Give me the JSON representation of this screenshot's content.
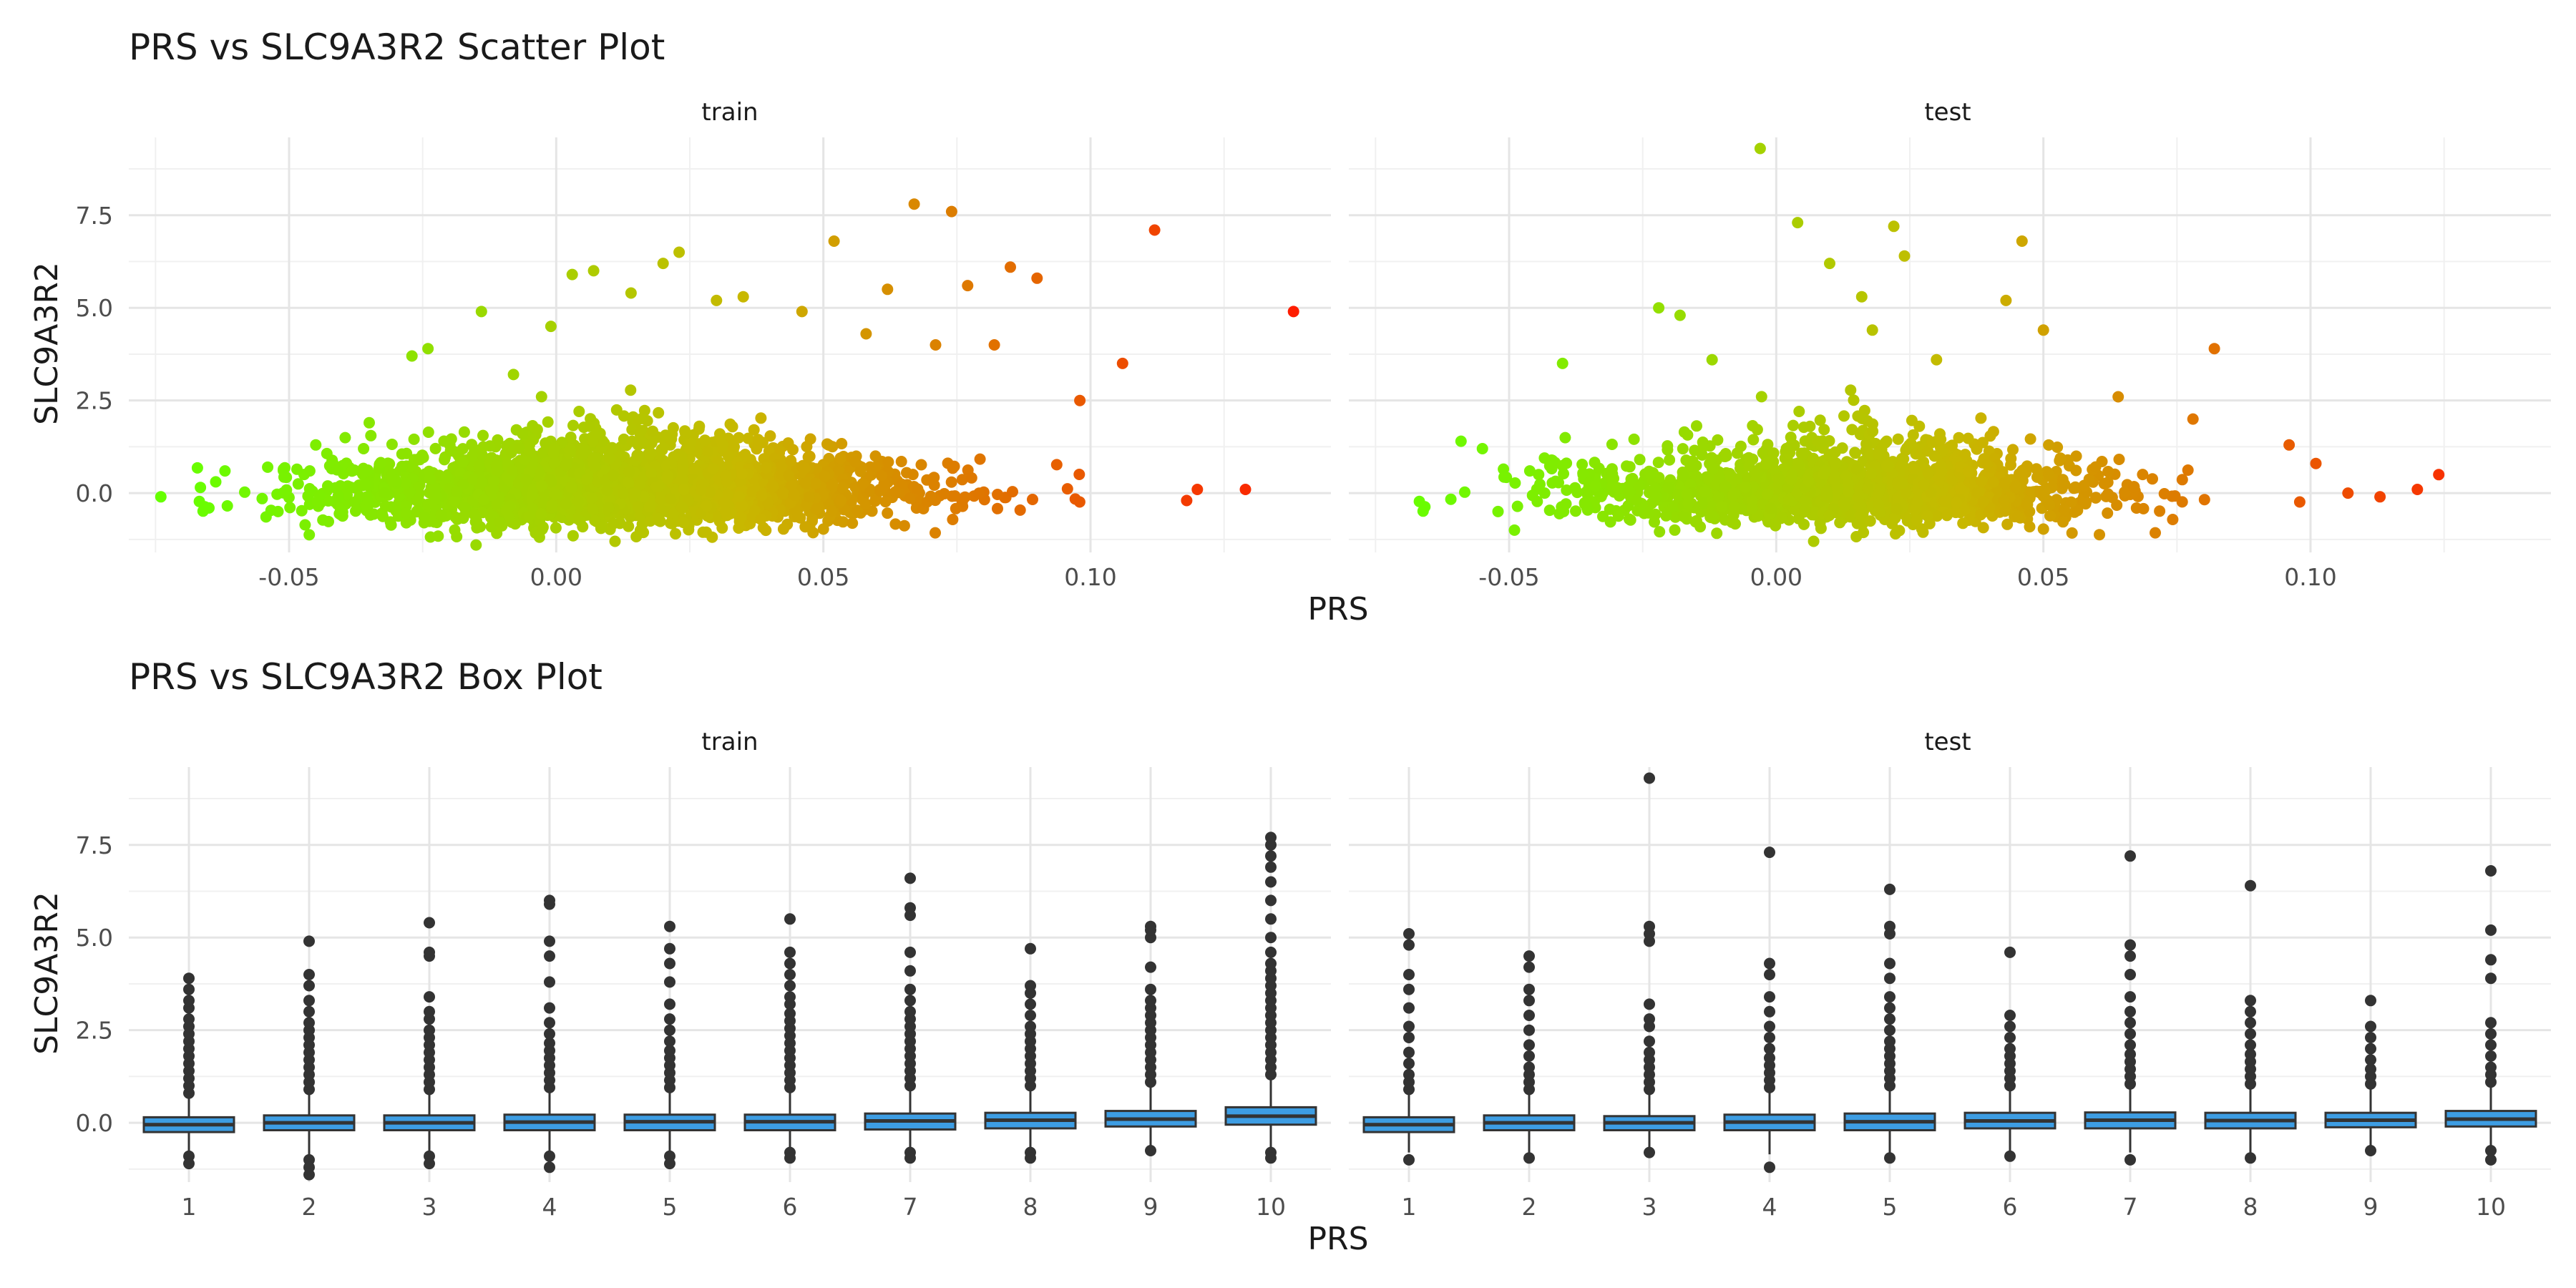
{
  "chart_data": [
    {
      "type": "scatter",
      "title": "PRS vs SLC9A3R2 Scatter Plot",
      "xlabel": "PRS",
      "ylabel": "SLC9A3R2",
      "facets": [
        "train",
        "test"
      ],
      "x_ticks": [
        "-0.05",
        "0.00",
        "0.05",
        "0.10"
      ],
      "x_tick_values": [
        -0.05,
        0.0,
        0.05,
        0.1
      ],
      "y_ticks": [
        "0.0",
        "2.5",
        "5.0",
        "7.5"
      ],
      "y_tick_values": [
        0.0,
        2.5,
        5.0,
        7.5
      ],
      "xlim": [
        -0.08,
        0.145
      ],
      "ylim": [
        -1.6,
        9.6
      ],
      "color_gradient": {
        "low": "#66ff00",
        "mid": "#c8b800",
        "high": "#ff1a00",
        "low_value": -0.07,
        "high_value": 0.14
      },
      "grid": true,
      "note": "Dense point cloud centred near SLC9A3R2 = 0 with points spreading upward; outlier points listed below.",
      "series": [
        {
          "name": "train",
          "points": [
            {
              "x": -0.074,
              "y": -0.1
            },
            {
              "x": -0.065,
              "y": -0.4
            },
            {
              "x": -0.062,
              "y": 0.6
            },
            {
              "x": -0.054,
              "y": 0.7
            },
            {
              "x": -0.045,
              "y": 1.3
            },
            {
              "x": -0.035,
              "y": 1.9
            },
            {
              "x": -0.027,
              "y": 3.7
            },
            {
              "x": -0.024,
              "y": 3.9
            },
            {
              "x": -0.014,
              "y": 4.9
            },
            {
              "x": -0.008,
              "y": 3.2
            },
            {
              "x": -0.001,
              "y": 4.5
            },
            {
              "x": 0.003,
              "y": 5.9
            },
            {
              "x": 0.007,
              "y": 6.0
            },
            {
              "x": 0.014,
              "y": 5.4
            },
            {
              "x": 0.02,
              "y": 6.2
            },
            {
              "x": 0.023,
              "y": 6.5
            },
            {
              "x": 0.03,
              "y": 5.2
            },
            {
              "x": 0.035,
              "y": 5.3
            },
            {
              "x": 0.046,
              "y": 4.9
            },
            {
              "x": 0.052,
              "y": 6.8
            },
            {
              "x": 0.058,
              "y": 4.3
            },
            {
              "x": 0.062,
              "y": 5.5
            },
            {
              "x": 0.067,
              "y": 7.8
            },
            {
              "x": 0.071,
              "y": 4.0
            },
            {
              "x": 0.074,
              "y": 7.6
            },
            {
              "x": 0.077,
              "y": 5.6
            },
            {
              "x": 0.082,
              "y": 4.0
            },
            {
              "x": 0.085,
              "y": 6.1
            },
            {
              "x": 0.09,
              "y": 5.8
            },
            {
              "x": 0.098,
              "y": 2.5
            },
            {
              "x": 0.106,
              "y": 3.5
            },
            {
              "x": 0.112,
              "y": 7.1
            },
            {
              "x": 0.12,
              "y": 0.1
            },
            {
              "x": 0.129,
              "y": 0.1
            },
            {
              "x": 0.138,
              "y": 4.9
            },
            {
              "x": 0.118,
              "y": -0.2
            },
            {
              "x": 0.011,
              "y": -1.3
            },
            {
              "x": -0.015,
              "y": -1.4
            }
          ]
        },
        {
          "name": "test",
          "points": [
            {
              "x": -0.059,
              "y": 1.4
            },
            {
              "x": -0.055,
              "y": 1.2
            },
            {
              "x": -0.049,
              "y": -1.0
            },
            {
              "x": -0.04,
              "y": 3.5
            },
            {
              "x": -0.022,
              "y": 5.0
            },
            {
              "x": -0.018,
              "y": 4.8
            },
            {
              "x": -0.012,
              "y": 3.6
            },
            {
              "x": -0.003,
              "y": 9.3
            },
            {
              "x": 0.004,
              "y": 7.3
            },
            {
              "x": 0.01,
              "y": 6.2
            },
            {
              "x": 0.016,
              "y": 5.3
            },
            {
              "x": 0.018,
              "y": 4.4
            },
            {
              "x": 0.022,
              "y": 7.2
            },
            {
              "x": 0.024,
              "y": 6.4
            },
            {
              "x": 0.03,
              "y": 3.6
            },
            {
              "x": 0.043,
              "y": 5.2
            },
            {
              "x": 0.046,
              "y": 6.8
            },
            {
              "x": 0.05,
              "y": 4.4
            },
            {
              "x": 0.064,
              "y": 2.6
            },
            {
              "x": 0.078,
              "y": 2.0
            },
            {
              "x": 0.082,
              "y": 3.9
            },
            {
              "x": 0.096,
              "y": 1.3
            },
            {
              "x": 0.101,
              "y": 0.8
            },
            {
              "x": 0.107,
              "y": 0.0
            },
            {
              "x": 0.113,
              "y": -0.1
            },
            {
              "x": 0.12,
              "y": 0.1
            },
            {
              "x": 0.124,
              "y": 0.5
            },
            {
              "x": 0.007,
              "y": -1.3
            }
          ]
        }
      ]
    },
    {
      "type": "box",
      "title": "PRS vs SLC9A3R2 Box Plot",
      "xlabel": "PRS",
      "ylabel": "SLC9A3R2",
      "facets": [
        "train",
        "test"
      ],
      "categories": [
        "1",
        "2",
        "3",
        "4",
        "5",
        "6",
        "7",
        "8",
        "9",
        "10"
      ],
      "y_ticks": [
        "0.0",
        "2.5",
        "5.0",
        "7.5"
      ],
      "y_tick_values": [
        0.0,
        2.5,
        5.0,
        7.5
      ],
      "ylim": [
        -1.6,
        9.6
      ],
      "box_fill": "#3d9de3",
      "outlier_color": "#333333",
      "grid": true,
      "series": [
        {
          "name": "train",
          "boxes": [
            {
              "q1": -0.25,
              "median": -0.05,
              "q3": 0.15,
              "whisker_low": -0.85,
              "whisker_high": 0.7,
              "outliers": [
                0.8,
                1.0,
                1.2,
                1.4,
                1.6,
                1.8,
                2.0,
                2.2,
                2.4,
                2.6,
                2.8,
                3.1,
                3.3,
                3.6,
                3.9,
                -0.9,
                -1.1
              ]
            },
            {
              "q1": -0.2,
              "median": 0.0,
              "q3": 0.2,
              "whisker_low": -0.9,
              "whisker_high": 0.8,
              "outliers": [
                0.9,
                1.1,
                1.3,
                1.5,
                1.7,
                1.9,
                2.1,
                2.3,
                2.5,
                2.7,
                3.0,
                3.3,
                3.7,
                4.0,
                4.9,
                -1.0,
                -1.2,
                -1.4
              ]
            },
            {
              "q1": -0.2,
              "median": 0.0,
              "q3": 0.2,
              "whisker_low": -0.85,
              "whisker_high": 0.8,
              "outliers": [
                0.9,
                1.1,
                1.3,
                1.5,
                1.7,
                1.9,
                2.1,
                2.3,
                2.5,
                2.8,
                3.0,
                3.4,
                4.5,
                4.6,
                5.4,
                -0.9,
                -1.1
              ]
            },
            {
              "q1": -0.2,
              "median": 0.02,
              "q3": 0.22,
              "whisker_low": -0.9,
              "whisker_high": 0.85,
              "outliers": [
                0.95,
                1.15,
                1.35,
                1.55,
                1.75,
                1.95,
                2.15,
                2.4,
                2.7,
                3.1,
                3.8,
                4.5,
                4.9,
                5.9,
                6.0,
                -0.9,
                -1.2
              ]
            },
            {
              "q1": -0.2,
              "median": 0.03,
              "q3": 0.22,
              "whisker_low": -0.9,
              "whisker_high": 0.85,
              "outliers": [
                0.95,
                1.15,
                1.35,
                1.55,
                1.75,
                1.95,
                2.2,
                2.5,
                2.8,
                3.2,
                3.8,
                4.3,
                4.7,
                5.3,
                -0.9,
                -1.1
              ]
            },
            {
              "q1": -0.2,
              "median": 0.03,
              "q3": 0.22,
              "whisker_low": -0.8,
              "whisker_high": 0.85,
              "outliers": [
                0.95,
                1.15,
                1.35,
                1.55,
                1.75,
                1.95,
                2.15,
                2.35,
                2.55,
                2.75,
                2.95,
                3.2,
                3.4,
                3.7,
                4.0,
                4.3,
                4.6,
                5.5,
                -0.8,
                -0.95
              ]
            },
            {
              "q1": -0.18,
              "median": 0.05,
              "q3": 0.25,
              "whisker_low": -0.8,
              "whisker_high": 0.9,
              "outliers": [
                1.0,
                1.2,
                1.4,
                1.6,
                1.8,
                2.0,
                2.2,
                2.4,
                2.6,
                2.8,
                3.0,
                3.3,
                3.6,
                4.1,
                4.6,
                5.6,
                5.8,
                6.6,
                -0.8,
                -0.95
              ]
            },
            {
              "q1": -0.15,
              "median": 0.07,
              "q3": 0.27,
              "whisker_low": -0.8,
              "whisker_high": 0.9,
              "outliers": [
                1.0,
                1.2,
                1.4,
                1.6,
                1.8,
                2.0,
                2.2,
                2.4,
                2.6,
                2.9,
                3.2,
                3.5,
                3.7,
                4.7,
                -0.8,
                -0.95
              ]
            },
            {
              "q1": -0.1,
              "median": 0.1,
              "q3": 0.32,
              "whisker_low": -0.75,
              "whisker_high": 1.0,
              "outliers": [
                1.1,
                1.3,
                1.5,
                1.7,
                1.9,
                2.1,
                2.3,
                2.5,
                2.7,
                2.9,
                3.1,
                3.3,
                3.6,
                4.2,
                5.0,
                5.2,
                5.3,
                -0.75
              ]
            },
            {
              "q1": -0.05,
              "median": 0.18,
              "q3": 0.42,
              "whisker_low": -0.8,
              "whisker_high": 1.2,
              "outliers": [
                1.3,
                1.5,
                1.7,
                1.9,
                2.1,
                2.3,
                2.5,
                2.7,
                2.9,
                3.1,
                3.3,
                3.5,
                3.7,
                3.9,
                4.1,
                4.3,
                4.6,
                5.0,
                5.5,
                6.0,
                6.5,
                6.9,
                7.2,
                7.5,
                7.7,
                -0.8,
                -0.95
              ]
            }
          ]
        },
        {
          "name": "test",
          "boxes": [
            {
              "q1": -0.25,
              "median": -0.05,
              "q3": 0.15,
              "whisker_low": -0.8,
              "whisker_high": 0.75,
              "outliers": [
                0.9,
                1.1,
                1.3,
                1.6,
                1.9,
                2.3,
                2.6,
                3.1,
                3.6,
                4.0,
                4.8,
                5.1,
                -1.0
              ]
            },
            {
              "q1": -0.2,
              "median": 0.0,
              "q3": 0.2,
              "whisker_low": -0.85,
              "whisker_high": 0.8,
              "outliers": [
                0.9,
                1.1,
                1.3,
                1.5,
                1.8,
                2.1,
                2.5,
                2.9,
                3.3,
                3.6,
                4.2,
                4.5,
                -0.95
              ]
            },
            {
              "q1": -0.2,
              "median": 0.0,
              "q3": 0.18,
              "whisker_low": -0.8,
              "whisker_high": 0.8,
              "outliers": [
                0.9,
                1.1,
                1.3,
                1.5,
                1.7,
                1.9,
                2.2,
                2.6,
                2.8,
                3.2,
                4.9,
                5.1,
                5.3,
                9.3,
                -0.8
              ]
            },
            {
              "q1": -0.2,
              "median": 0.02,
              "q3": 0.22,
              "whisker_low": -0.85,
              "whisker_high": 0.85,
              "outliers": [
                0.95,
                1.15,
                1.35,
                1.55,
                1.75,
                2.0,
                2.3,
                2.6,
                3.0,
                3.4,
                4.0,
                4.3,
                7.3,
                -1.2
              ]
            },
            {
              "q1": -0.2,
              "median": 0.03,
              "q3": 0.25,
              "whisker_low": -0.9,
              "whisker_high": 0.9,
              "outliers": [
                1.0,
                1.2,
                1.4,
                1.6,
                1.8,
                2.0,
                2.2,
                2.5,
                2.8,
                3.1,
                3.4,
                3.9,
                4.3,
                5.1,
                5.3,
                6.3,
                -0.95
              ]
            },
            {
              "q1": -0.15,
              "median": 0.05,
              "q3": 0.27,
              "whisker_low": -0.85,
              "whisker_high": 0.9,
              "outliers": [
                1.0,
                1.2,
                1.4,
                1.6,
                1.8,
                2.0,
                2.3,
                2.6,
                2.9,
                4.6,
                -0.9
              ]
            },
            {
              "q1": -0.15,
              "median": 0.07,
              "q3": 0.28,
              "whisker_low": -0.8,
              "whisker_high": 0.95,
              "outliers": [
                1.05,
                1.25,
                1.45,
                1.65,
                1.85,
                2.1,
                2.4,
                2.7,
                3.0,
                3.4,
                4.0,
                4.5,
                4.8,
                7.2,
                -1.0
              ]
            },
            {
              "q1": -0.15,
              "median": 0.06,
              "q3": 0.27,
              "whisker_low": -0.8,
              "whisker_high": 0.95,
              "outliers": [
                1.05,
                1.25,
                1.45,
                1.65,
                1.85,
                2.1,
                2.4,
                2.7,
                3.0,
                3.3,
                6.4,
                -0.95
              ]
            },
            {
              "q1": -0.12,
              "median": 0.07,
              "q3": 0.27,
              "whisker_low": -0.7,
              "whisker_high": 0.95,
              "outliers": [
                1.05,
                1.25,
                1.45,
                1.7,
                2.0,
                2.3,
                2.6,
                3.3,
                -0.75
              ]
            },
            {
              "q1": -0.1,
              "median": 0.1,
              "q3": 0.32,
              "whisker_low": -0.75,
              "whisker_high": 1.0,
              "outliers": [
                1.1,
                1.3,
                1.5,
                1.8,
                2.1,
                2.4,
                2.7,
                3.9,
                4.4,
                5.2,
                6.8,
                -0.75,
                -1.0
              ]
            }
          ]
        }
      ]
    }
  ]
}
